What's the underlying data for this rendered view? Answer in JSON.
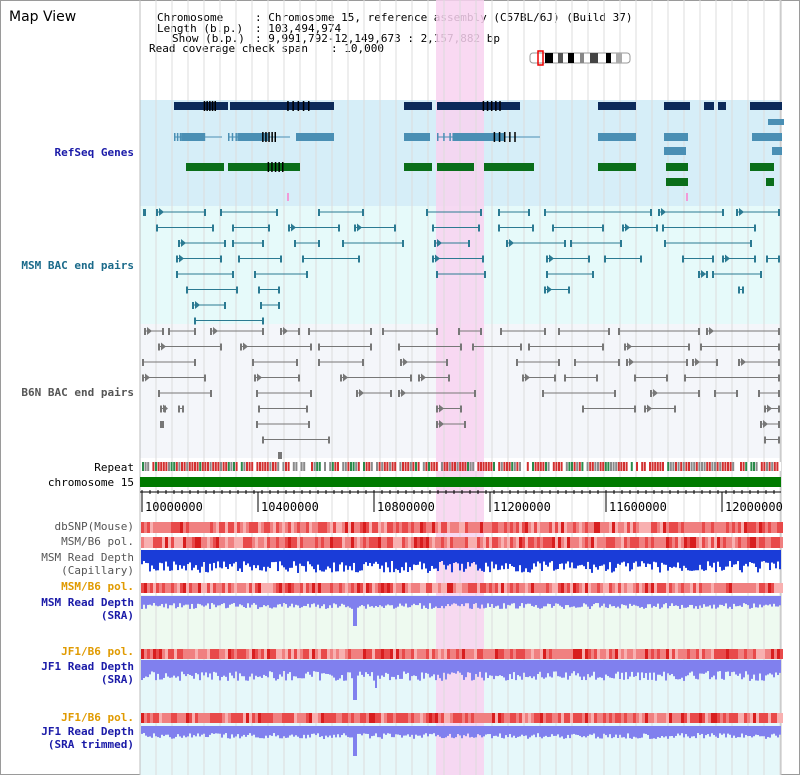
{
  "page": {
    "title": "Map View"
  },
  "info": {
    "chromosome_label": "Chromosome",
    "chromosome_value": ": Chromosome 15, reference assembly (C57BL/6J) (Build 37)",
    "length_label": "Length (b.p.)",
    "length_value": ": 103,494,974",
    "show_label": "Show (b.p.)",
    "show_value": ": 9,991,792-12,149,673 : 2,157,882 bp",
    "coverage_label": "Read coverage check span",
    "coverage_value": ": 10,000"
  },
  "tracks": {
    "refseq_label": "RefSeq Genes",
    "msm_bac_label": "MSM BAC end pairs",
    "b6n_bac_label": "B6N BAC end pairs",
    "repeat_label": "Repeat",
    "chromosome_bar_label": "chromosome 15",
    "dbsnp_label": "dbSNP(Mouse)",
    "msm_b6_pol_label": "MSM/B6 pol.",
    "msm_depth_cap_label_1": "MSM Read Depth",
    "msm_depth_cap_label_2": "(Capillary)",
    "msm_b6_pol_label_2": "MSM/B6 pol.",
    "msm_depth_sra_label_1": "MSM Read Depth",
    "msm_depth_sra_label_2": "(SRA)",
    "jf1_b6_pol_label": "JF1/B6 pol.",
    "jf1_depth_sra_label_1": "JF1 Read Depth",
    "jf1_depth_sra_label_2": "(SRA)",
    "jf1_b6_pol_label_2": "JF1/B6 pol.",
    "jf1_depth_trim_label_1": "JF1 Read Depth",
    "jf1_depth_trim_label_2": "(SRA trimmed)"
  },
  "axis": {
    "ticks": [
      "10000000",
      "10400000",
      "10800000",
      "11200000",
      "11600000",
      "12000000"
    ]
  },
  "colors": {
    "refseq_bg": "#d6eef8",
    "msm_bg": "#e6fafa",
    "b6n_bg": "#f4f6fa",
    "highlight": "#f8d2f0",
    "gene_dark": "#0c2a5a",
    "gene_mid": "#4a8fb4",
    "gene_green": "#0a6e1a",
    "bac_msm": "#2b7a92",
    "bac_b6n": "#777777",
    "chromosome_green": "#007a00",
    "snp_red": "#e83a3a",
    "depth_blue": "#1a3cd8",
    "depth_light": "#8080ee",
    "label_blue": "#1a1aa8",
    "label_orange": "#e09a00",
    "label_teal": "#1a6a8a",
    "label_gray": "#555555"
  }
}
